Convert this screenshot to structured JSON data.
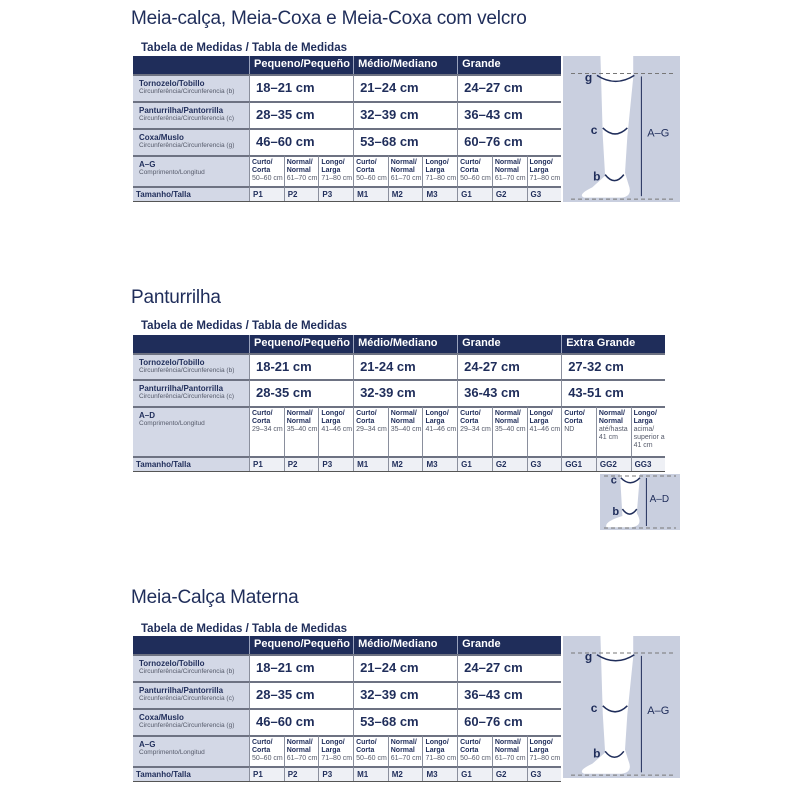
{
  "colors": {
    "navy": "#1f2d5a",
    "label_bg": "#d3d8e6",
    "diagram_bg": "#c9cfdf"
  },
  "sections": [
    {
      "title": "Meia-calça, Meia-Coxa e Meia-Coxa com velcro",
      "subtitle": "Tabela de Medidas / Tabla de Medidas",
      "groups": [
        "Pequeno/Pequeño",
        "Médio/Mediano",
        "Grande"
      ],
      "rows": [
        {
          "label": "Tornozelo/Tobillo",
          "sublabel": "Circunferência/Circunferencia (b)",
          "values": [
            "18–21 cm",
            "21–24 cm",
            "24–27 cm"
          ]
        },
        {
          "label": "Panturrilha/Pantorrilla",
          "sublabel": "Circunferência/Circunferencia (c)",
          "values": [
            "28–35 cm",
            "32–39 cm",
            "36–43 cm"
          ]
        },
        {
          "label": "Coxa/Muslo",
          "sublabel": "Circunferência/Circunferencia (g)",
          "values": [
            "46–60 cm",
            "53–68 cm",
            "60–76 cm"
          ]
        }
      ],
      "length": {
        "label": "A–G",
        "sublabel": "Comprimento/Longitud",
        "cells": [
          [
            "Curto/",
            "Corta",
            "50–60 cm"
          ],
          [
            "Normal/",
            "Normal",
            "61–70 cm"
          ],
          [
            "Longo/",
            "Larga",
            "71–80 cm"
          ],
          [
            "Curto/",
            "Corta",
            "50–60 cm"
          ],
          [
            "Normal/",
            "Normal",
            "61–70 cm"
          ],
          [
            "Longo/",
            "Larga",
            "71–80 cm"
          ],
          [
            "Curto/",
            "Corta",
            "50–60 cm"
          ],
          [
            "Normal/",
            "Normal",
            "61–70 cm"
          ],
          [
            "Longo/",
            "Larga",
            "71–80 cm"
          ]
        ]
      },
      "size": {
        "label": "Tamanho/Talla",
        "values": [
          "P1",
          "P2",
          "P3",
          "M1",
          "M2",
          "M3",
          "G1",
          "G2",
          "G3"
        ]
      },
      "diagram": {
        "labels": [
          "g",
          "c",
          "b"
        ],
        "measure": "A–G"
      }
    },
    {
      "title": "Panturrilha",
      "subtitle": "Tabela de Medidas / Tabla de Medidas",
      "groups": [
        "Pequeno/Pequeño",
        "Médio/Mediano",
        "Grande",
        "Extra Grande"
      ],
      "rows": [
        {
          "label": "Tornozelo/Tobillo",
          "sublabel": "Circunferência/Circunferencia (b)",
          "values": [
            "18-21 cm",
            "21-24 cm",
            "24-27 cm",
            "27-32 cm"
          ]
        },
        {
          "label": "Panturrilha/Pantorrilla",
          "sublabel": "Circunferência/Circunferencia (c)",
          "values": [
            "28-35 cm",
            "32-39 cm",
            "36-43 cm",
            "43-51 cm"
          ]
        }
      ],
      "length": {
        "label": "A–D",
        "sublabel": "Comprimento/Longitud",
        "cells": [
          [
            "Curto/",
            "Corta",
            "29–34 cm"
          ],
          [
            "Normal/",
            "Normal",
            "35–40 cm"
          ],
          [
            "Longo/",
            "Larga",
            "41–46 cm"
          ],
          [
            "Curto/",
            "Corta",
            "29–34 cm"
          ],
          [
            "Normal/",
            "Normal",
            "35–40 cm"
          ],
          [
            "Longo/",
            "Larga",
            "41–46 cm"
          ],
          [
            "Curto/",
            "Corta",
            "29–34 cm"
          ],
          [
            "Normal/",
            "Normal",
            "35–40 cm"
          ],
          [
            "Longo/",
            "Larga",
            "41–46 cm"
          ],
          [
            "Curto/",
            "Corta",
            "ND"
          ],
          [
            "Normal/",
            "Normal",
            "até/hasta",
            "41 cm"
          ],
          [
            "Longo/",
            "Larga",
            "acima/",
            "superior a",
            "41 cm"
          ]
        ]
      },
      "size": {
        "label": "Tamanho/Talla",
        "values": [
          "P1",
          "P2",
          "P3",
          "M1",
          "M2",
          "M3",
          "G1",
          "G2",
          "G3",
          "GG1",
          "GG2",
          "GG3"
        ]
      },
      "diagram": {
        "labels": [
          "c",
          "b"
        ],
        "measure": "A–D"
      }
    },
    {
      "title": "Meia-Calça Materna",
      "subtitle": "Tabela de Medidas / Tabla de Medidas",
      "groups": [
        "Pequeno/Pequeño",
        "Médio/Mediano",
        "Grande"
      ],
      "rows": [
        {
          "label": "Tornozelo/Tobillo",
          "sublabel": "Circunferência/Circunferencia (b)",
          "values": [
            "18–21 cm",
            "21–24 cm",
            "24–27 cm"
          ]
        },
        {
          "label": "Panturrilha/Pantorrilla",
          "sublabel": "Circunferência/Circunferencia (c)",
          "values": [
            "28–35 cm",
            "32–39 cm",
            "36–43 cm"
          ]
        },
        {
          "label": "Coxa/Muslo",
          "sublabel": "Circunferência/Circunferencia (g)",
          "values": [
            "46–60 cm",
            "53–68 cm",
            "60–76 cm"
          ]
        }
      ],
      "length": {
        "label": "A–G",
        "sublabel": "Comprimento/Longitud",
        "cells": [
          [
            "Curto/",
            "Corta",
            "50–60 cm"
          ],
          [
            "Normal/",
            "Normal",
            "61–70 cm"
          ],
          [
            "Longo/",
            "Larga",
            "71–80 cm"
          ],
          [
            "Curto/",
            "Corta",
            "50–60 cm"
          ],
          [
            "Normal/",
            "Normal",
            "61–70 cm"
          ],
          [
            "Longo/",
            "Larga",
            "71–80 cm"
          ],
          [
            "Curto/",
            "Corta",
            "50–60 cm"
          ],
          [
            "Normal/",
            "Normal",
            "61–70 cm"
          ],
          [
            "Longo/",
            "Larga",
            "71–80 cm"
          ]
        ]
      },
      "size": {
        "label": "Tamanho/Talla",
        "values": [
          "P1",
          "P2",
          "P3",
          "M1",
          "M2",
          "M3",
          "G1",
          "G2",
          "G3"
        ]
      },
      "diagram": {
        "labels": [
          "g",
          "c",
          "b"
        ],
        "measure": "A–G"
      }
    }
  ]
}
